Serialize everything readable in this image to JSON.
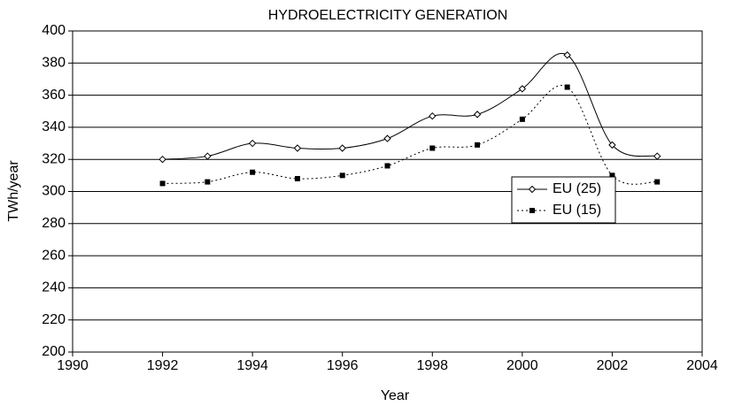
{
  "chart_data": {
    "type": "line",
    "title": "HYDROELECTRICITY GENERATION",
    "xlabel": "Year",
    "ylabel": "TWh/year",
    "x": [
      1992,
      1993,
      1994,
      1995,
      1996,
      1997,
      1998,
      1999,
      2000,
      2001,
      2002,
      2003
    ],
    "series": [
      {
        "name": "EU (25)",
        "color": "#000000",
        "dash": "solid",
        "marker": "diamond",
        "values": [
          320,
          322,
          330,
          327,
          327,
          333,
          347,
          348,
          364,
          385,
          329,
          322
        ]
      },
      {
        "name": "EU (15)",
        "color": "#000000",
        "dash": "dotted",
        "marker": "square",
        "values": [
          305,
          306,
          312,
          308,
          310,
          316,
          327,
          329,
          345,
          365,
          310,
          306
        ]
      }
    ],
    "xlim": [
      1990,
      2004
    ],
    "xticks": [
      1990,
      1992,
      1994,
      1996,
      1998,
      2000,
      2002,
      2004
    ],
    "ylim": [
      200,
      400
    ],
    "yticks": [
      200,
      220,
      240,
      260,
      280,
      300,
      320,
      340,
      360,
      380,
      400
    ],
    "grid": true
  }
}
